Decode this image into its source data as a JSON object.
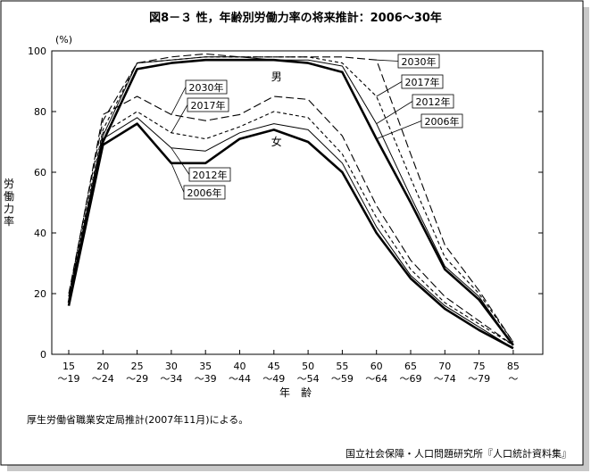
{
  "title": "図8－３ 性，年齢別労働力率の将来推計：2006～30年",
  "footnote": "厚生労働省職業安定局推計(2007年11月)による。",
  "source": "国立社会保障・人口問題研究所『人口統計資料集』",
  "chart_data": {
    "type": "line",
    "title": "図8－３ 性，年齢別労働力率の将来推計：2006～30年",
    "ylabel": "労働力率",
    "yunit": "(%)",
    "xlabel": "年　齢",
    "ylim": [
      0,
      100
    ],
    "yticks": [
      0,
      20,
      40,
      60,
      80,
      100
    ],
    "grid": false,
    "categories_top": [
      "15",
      "20",
      "25",
      "30",
      "35",
      "40",
      "45",
      "50",
      "55",
      "60",
      "65",
      "70",
      "75",
      "85"
    ],
    "categories_bottom": [
      "～19",
      "～24",
      "～29",
      "～34",
      "～39",
      "～44",
      "～49",
      "～54",
      "～59",
      "～64",
      "～69",
      "～74",
      "～79",
      "～"
    ],
    "group_labels": {
      "male": "男",
      "female": "女"
    },
    "series": [
      {
        "name": "2006年",
        "group": "male",
        "values": [
          17,
          70,
          94,
          96,
          97,
          97,
          97,
          96,
          93,
          71,
          50,
          28,
          18,
          3
        ]
      },
      {
        "name": "2012年",
        "group": "male",
        "values": [
          18,
          72,
          96,
          97,
          98,
          98,
          97,
          97,
          95,
          76,
          52,
          29,
          19,
          3
        ]
      },
      {
        "name": "2017年",
        "group": "male",
        "values": [
          19,
          74,
          96,
          97,
          98,
          98,
          98,
          98,
          96,
          85,
          58,
          32,
          20,
          4
        ]
      },
      {
        "name": "2030年",
        "group": "male",
        "values": [
          20,
          77,
          96,
          98,
          99,
          98,
          98,
          98,
          98,
          97,
          66,
          36,
          21,
          4
        ]
      },
      {
        "name": "2006年",
        "group": "female",
        "values": [
          16,
          69,
          76,
          63,
          63,
          71,
          74,
          70,
          60,
          40,
          25,
          15,
          8,
          2
        ]
      },
      {
        "name": "2012年",
        "group": "female",
        "values": [
          17,
          71,
          78,
          68,
          67,
          73,
          76,
          74,
          63,
          42,
          26,
          16,
          9,
          2
        ]
      },
      {
        "name": "2017年",
        "group": "female",
        "values": [
          18,
          73,
          80,
          73,
          71,
          75,
          80,
          78,
          66,
          45,
          28,
          17,
          10,
          3
        ]
      },
      {
        "name": "2030年",
        "group": "female",
        "values": [
          19,
          79,
          85,
          79,
          77,
          79,
          85,
          84,
          72,
          49,
          31,
          19,
          11,
          3
        ]
      }
    ]
  }
}
